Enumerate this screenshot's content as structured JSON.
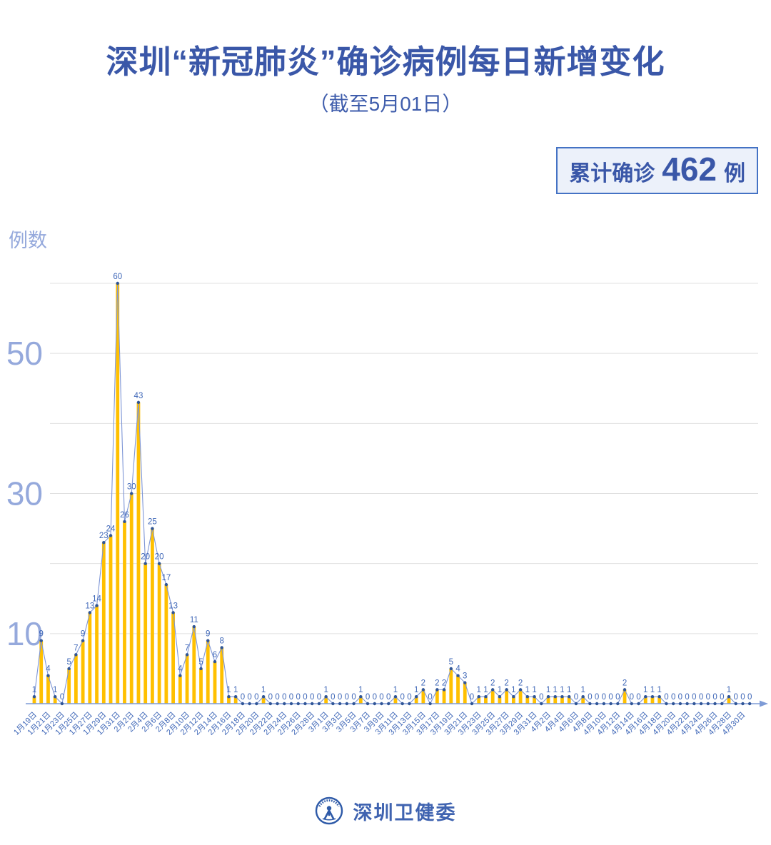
{
  "header": {
    "title": "深圳“新冠肺炎”确诊病例每日新增变化",
    "subtitle": "（截至5月01日）"
  },
  "badge": {
    "prefix": "累计确诊",
    "value": "462",
    "suffix": "例"
  },
  "footer": {
    "org": "深圳卫健委",
    "logo": "shenzhen-health-commission-emblem"
  },
  "chart_data": {
    "type": "bar",
    "title": "深圳“新冠肺炎”确诊病例每日新增变化",
    "xlabel": "",
    "ylabel": "例数",
    "ylim": [
      0,
      60
    ],
    "grid": true,
    "grid_step": 10,
    "yticks_labeled": [
      10,
      30,
      50
    ],
    "x_label_interval": 2,
    "point_labels": true,
    "categories": [
      "1月19日",
      "1月20日",
      "1月21日",
      "1月22日",
      "1月23日",
      "1月24日",
      "1月25日",
      "1月26日",
      "1月27日",
      "1月28日",
      "1月29日",
      "1月30日",
      "1月31日",
      "2月1日",
      "2月2日",
      "2月3日",
      "2月4日",
      "2月5日",
      "2月6日",
      "2月7日",
      "2月8日",
      "2月9日",
      "2月10日",
      "2月11日",
      "2月12日",
      "2月13日",
      "2月14日",
      "2月15日",
      "2月16日",
      "2月17日",
      "2月18日",
      "2月19日",
      "2月20日",
      "2月21日",
      "2月22日",
      "2月23日",
      "2月24日",
      "2月25日",
      "2月26日",
      "2月27日",
      "2月28日",
      "2月29日",
      "3月1日",
      "3月2日",
      "3月3日",
      "3月4日",
      "3月5日",
      "3月6日",
      "3月7日",
      "3月8日",
      "3月9日",
      "3月10日",
      "3月11日",
      "3月12日",
      "3月13日",
      "3月14日",
      "3月15日",
      "3月16日",
      "3月17日",
      "3月18日",
      "3月19日",
      "3月20日",
      "3月21日",
      "3月22日",
      "3月23日",
      "3月24日",
      "3月25日",
      "3月26日",
      "3月27日",
      "3月28日",
      "3月29日",
      "3月30日",
      "3月31日",
      "4月1日",
      "4月2日",
      "4月3日",
      "4月4日",
      "4月5日",
      "4月6日",
      "4月7日",
      "4月8日",
      "4月9日",
      "4月10日",
      "4月11日",
      "4月12日",
      "4月13日",
      "4月14日",
      "4月15日",
      "4月16日",
      "4月17日",
      "4月18日",
      "4月19日",
      "4月20日",
      "4月21日",
      "4月22日",
      "4月23日",
      "4月24日",
      "4月25日",
      "4月26日",
      "4月27日",
      "4月28日",
      "4月29日",
      "4月30日",
      "5月1日"
    ],
    "values": [
      1,
      9,
      4,
      1,
      0,
      5,
      7,
      9,
      13,
      14,
      23,
      24,
      60,
      26,
      30,
      43,
      20,
      25,
      20,
      17,
      13,
      4,
      7,
      11,
      5,
      9,
      6,
      8,
      1,
      1,
      0,
      0,
      0,
      1,
      0,
      0,
      0,
      0,
      0,
      0,
      0,
      0,
      1,
      0,
      0,
      0,
      0,
      1,
      0,
      0,
      0,
      0,
      1,
      0,
      0,
      1,
      2,
      0,
      2,
      2,
      5,
      4,
      3,
      0,
      1,
      1,
      2,
      1,
      2,
      1,
      2,
      1,
      1,
      0,
      1,
      1,
      1,
      1,
      0,
      1,
      0,
      0,
      0,
      0,
      0,
      2,
      0,
      0,
      1,
      1,
      1,
      0,
      0,
      0,
      0,
      0,
      0,
      0,
      0,
      0,
      1,
      0,
      0,
      0
    ],
    "cumulative_total": 462,
    "colors": {
      "bar": "#FFC000",
      "line": "#7E96D6",
      "marker": "#2F5597",
      "value_label": "#4068B8",
      "grid": "#E0E0E0",
      "axis": "#7E9BD6",
      "ytick": "#95A9DC",
      "date_label": "#4068B8"
    }
  }
}
